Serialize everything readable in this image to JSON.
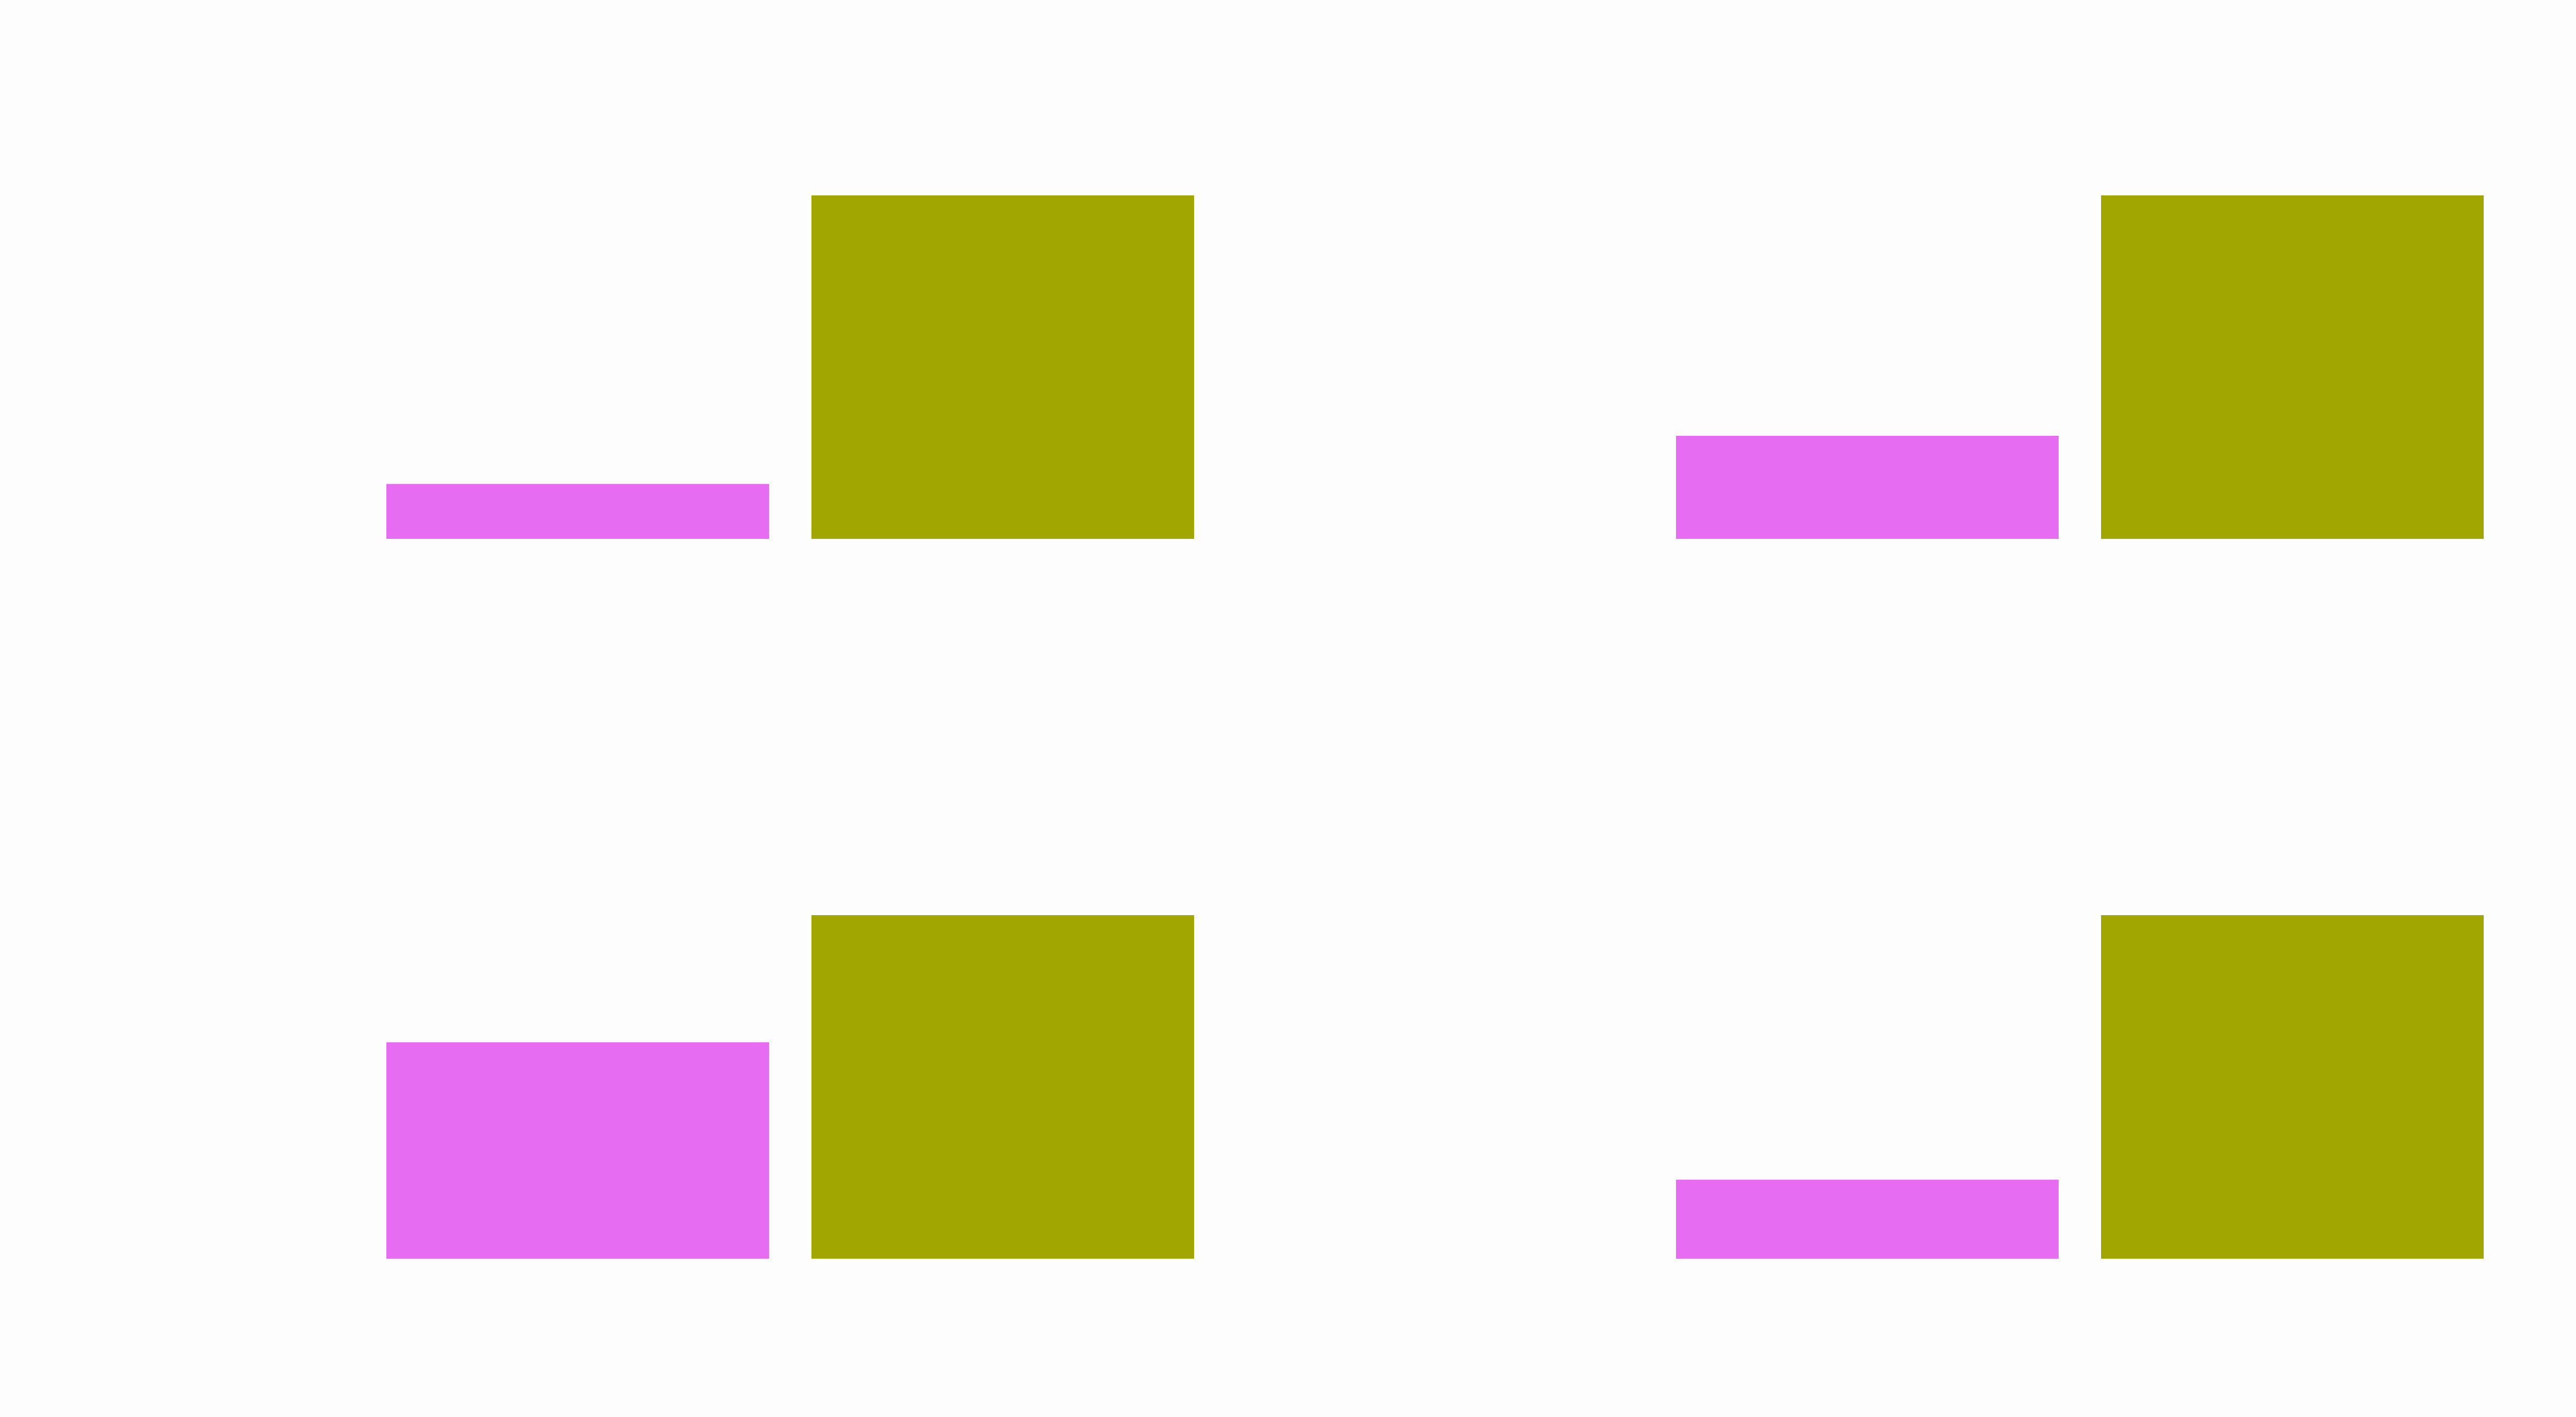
{
  "chart_data": [
    {
      "type": "bar",
      "categories": [
        "",
        ""
      ],
      "values": [
        16,
        100
      ],
      "ylim": [
        0,
        100
      ],
      "colors": [
        "#e66cf1",
        "#a2a600"
      ],
      "grid": false,
      "axes_visible": false
    },
    {
      "type": "bar",
      "categories": [
        "",
        ""
      ],
      "values": [
        30,
        100
      ],
      "ylim": [
        0,
        100
      ],
      "colors": [
        "#e66cf1",
        "#a2a600"
      ],
      "grid": false,
      "axes_visible": false
    },
    {
      "type": "bar",
      "categories": [
        "",
        ""
      ],
      "values": [
        63,
        100
      ],
      "ylim": [
        0,
        100
      ],
      "colors": [
        "#e66cf1",
        "#a2a600"
      ],
      "grid": false,
      "axes_visible": false
    },
    {
      "type": "bar",
      "categories": [
        "",
        ""
      ],
      "values": [
        23,
        100
      ],
      "ylim": [
        0,
        100
      ],
      "colors": [
        "#e66cf1",
        "#a2a600"
      ],
      "grid": false,
      "axes_visible": false
    }
  ]
}
